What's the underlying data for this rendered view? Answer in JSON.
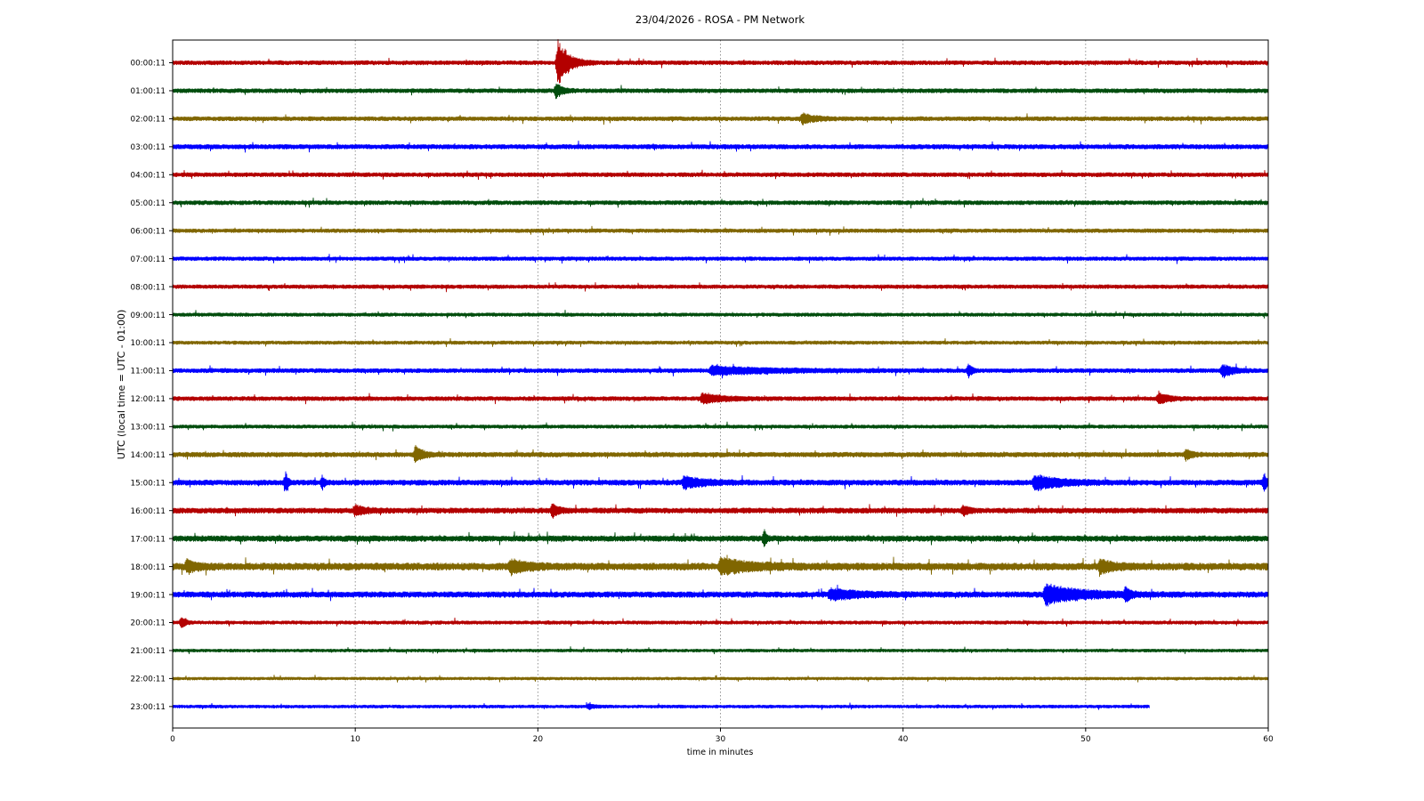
{
  "chart_data": {
    "type": "line",
    "subtype": "helicorder",
    "title": "23/04/2026 - ROSA - PM Network",
    "xlabel": "time in minutes",
    "ylabel": "UTC (local time = UTC - 01:00)",
    "xlim": [
      0,
      60
    ],
    "xticks": [
      0,
      10,
      20,
      30,
      40,
      50,
      60
    ],
    "grid": {
      "x": true,
      "y": false,
      "style": "dotted"
    },
    "legend": "none",
    "colors": [
      "#b30000",
      "#004d0d",
      "#806600",
      "#0000ff"
    ],
    "rows": [
      {
        "label": "00:00:11",
        "noise": 0.22,
        "events": [
          {
            "t": 21.1,
            "amp": 3.0,
            "dur": 1.0
          }
        ]
      },
      {
        "label": "01:00:11",
        "noise": 0.22,
        "events": [
          {
            "t": 21.0,
            "amp": 0.9,
            "dur": 0.6
          }
        ]
      },
      {
        "label": "02:00:11",
        "noise": 0.22,
        "events": [
          {
            "t": 34.5,
            "amp": 0.6,
            "dur": 1.2
          }
        ]
      },
      {
        "label": "03:00:11",
        "noise": 0.24,
        "events": []
      },
      {
        "label": "04:00:11",
        "noise": 0.22,
        "events": []
      },
      {
        "label": "05:00:11",
        "noise": 0.22,
        "events": []
      },
      {
        "label": "06:00:11",
        "noise": 0.2,
        "events": []
      },
      {
        "label": "07:00:11",
        "noise": 0.2,
        "events": []
      },
      {
        "label": "08:00:11",
        "noise": 0.2,
        "events": []
      },
      {
        "label": "09:00:11",
        "noise": 0.18,
        "events": []
      },
      {
        "label": "10:00:11",
        "noise": 0.18,
        "events": []
      },
      {
        "label": "11:00:11",
        "noise": 0.22,
        "events": [
          {
            "t": 29.5,
            "amp": 0.5,
            "dur": 6.0
          },
          {
            "t": 43.6,
            "amp": 0.9,
            "dur": 0.3
          },
          {
            "t": 57.5,
            "amp": 0.8,
            "dur": 1.0
          }
        ]
      },
      {
        "label": "12:00:11",
        "noise": 0.22,
        "events": [
          {
            "t": 29.0,
            "amp": 0.6,
            "dur": 2.0
          },
          {
            "t": 54.0,
            "amp": 0.6,
            "dur": 1.0
          }
        ]
      },
      {
        "label": "13:00:11",
        "noise": 0.18,
        "events": []
      },
      {
        "label": "14:00:11",
        "noise": 0.25,
        "events": [
          {
            "t": 13.3,
            "amp": 1.0,
            "dur": 0.7
          },
          {
            "t": 55.5,
            "amp": 0.7,
            "dur": 0.5
          }
        ]
      },
      {
        "label": "15:00:11",
        "noise": 0.28,
        "events": [
          {
            "t": 6.2,
            "amp": 1.2,
            "dur": 0.2
          },
          {
            "t": 8.2,
            "amp": 0.8,
            "dur": 0.2
          },
          {
            "t": 28.0,
            "amp": 0.7,
            "dur": 2.0
          },
          {
            "t": 47.2,
            "amp": 0.9,
            "dur": 2.5
          },
          {
            "t": 59.8,
            "amp": 1.2,
            "dur": 0.2
          }
        ]
      },
      {
        "label": "16:00:11",
        "noise": 0.28,
        "events": [
          {
            "t": 10.0,
            "amp": 0.6,
            "dur": 1.0
          },
          {
            "t": 20.8,
            "amp": 0.8,
            "dur": 0.6
          },
          {
            "t": 43.3,
            "amp": 0.6,
            "dur": 0.5
          }
        ]
      },
      {
        "label": "17:00:11",
        "noise": 0.3,
        "events": [
          {
            "t": 32.4,
            "amp": 1.0,
            "dur": 0.2
          }
        ]
      },
      {
        "label": "18:00:11",
        "noise": 0.38,
        "events": [
          {
            "t": 0.8,
            "amp": 0.8,
            "dur": 0.8
          },
          {
            "t": 18.5,
            "amp": 0.8,
            "dur": 1.5
          },
          {
            "t": 30.0,
            "amp": 0.9,
            "dur": 3.0
          },
          {
            "t": 50.8,
            "amp": 0.8,
            "dur": 1.2
          }
        ]
      },
      {
        "label": "19:00:11",
        "noise": 0.3,
        "events": [
          {
            "t": 36.0,
            "amp": 0.6,
            "dur": 3.0
          },
          {
            "t": 47.8,
            "amp": 1.2,
            "dur": 3.5
          },
          {
            "t": 52.2,
            "amp": 0.8,
            "dur": 0.4
          }
        ]
      },
      {
        "label": "20:00:11",
        "noise": 0.18,
        "events": [
          {
            "t": 0.5,
            "amp": 0.7,
            "dur": 0.4
          }
        ]
      },
      {
        "label": "21:00:11",
        "noise": 0.16,
        "events": []
      },
      {
        "label": "22:00:11",
        "noise": 0.15,
        "events": []
      },
      {
        "label": "23:00:11",
        "noise": 0.16,
        "end": 53.5,
        "events": [
          {
            "t": 22.8,
            "amp": 0.3,
            "dur": 0.5
          }
        ]
      }
    ]
  }
}
